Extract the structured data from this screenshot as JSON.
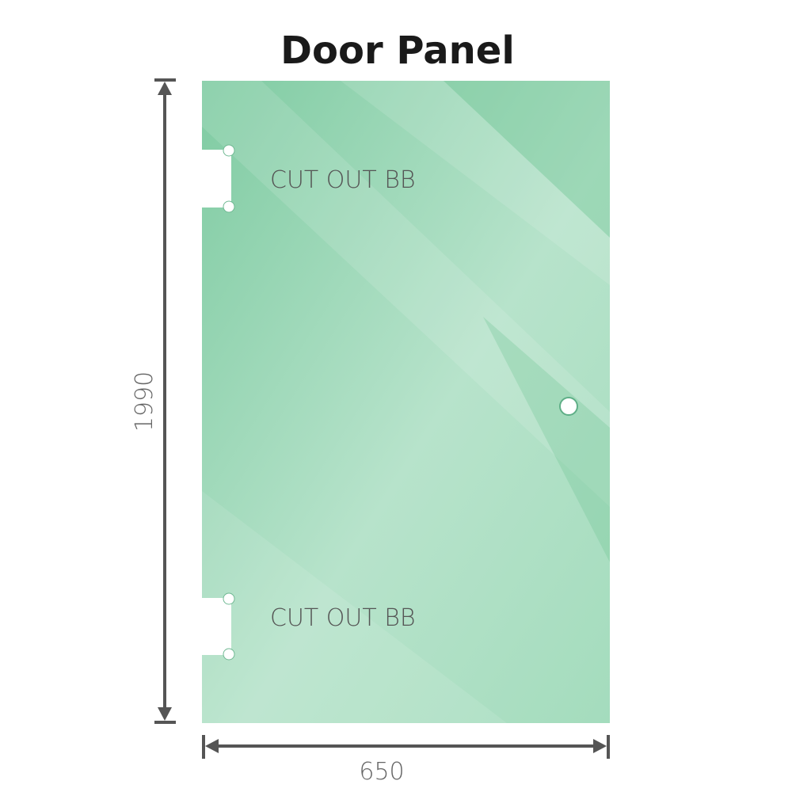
{
  "title": "Door Panel",
  "panel": {
    "glass_color": "#8fd2ad",
    "cutouts": [
      {
        "label": "CUT OUT BB"
      },
      {
        "label": "CUT OUT BB"
      }
    ],
    "handle_hole": true
  },
  "dimensions": {
    "height": "1990",
    "width": "650",
    "line_color": "#555555"
  }
}
